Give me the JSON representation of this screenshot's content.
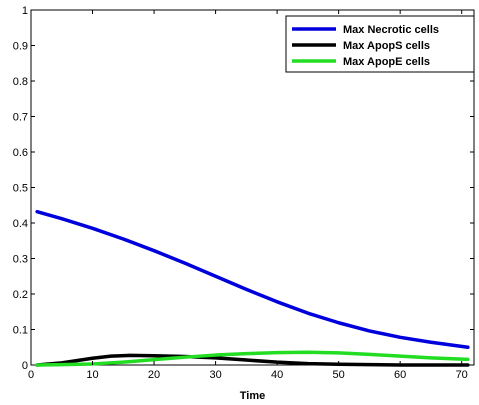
{
  "chart_data": {
    "type": "line",
    "title": "",
    "xlabel": "Time",
    "ylabel": "",
    "xlim": [
      0,
      72
    ],
    "ylim": [
      0,
      1
    ],
    "xticks": [
      0,
      10,
      20,
      30,
      40,
      50,
      60,
      70
    ],
    "yticks": [
      0,
      0.1,
      0.2,
      0.3,
      0.4,
      0.5,
      0.6,
      0.7,
      0.8,
      0.9,
      1
    ],
    "grid": false,
    "legend_position": "top-right",
    "series": [
      {
        "name": "Max Necrotic cells",
        "color": "#0000dd",
        "x": [
          1,
          5,
          10,
          15,
          20,
          25,
          30,
          35,
          40,
          45,
          50,
          55,
          60,
          65,
          71
        ],
        "y": [
          0.432,
          0.412,
          0.385,
          0.355,
          0.322,
          0.287,
          0.25,
          0.213,
          0.178,
          0.146,
          0.119,
          0.096,
          0.078,
          0.064,
          0.05
        ]
      },
      {
        "name": "Max ApopS cells",
        "color": "#000000",
        "x": [
          1,
          5,
          10,
          13,
          16,
          20,
          25,
          30,
          35,
          40,
          45,
          50,
          55,
          60,
          71
        ],
        "y": [
          0,
          0.006,
          0.019,
          0.025,
          0.027,
          0.026,
          0.024,
          0.02,
          0.014,
          0.008,
          0.004,
          0.002,
          0.001,
          0,
          0
        ]
      },
      {
        "name": "Max ApopE cells",
        "color": "#22dd22",
        "x": [
          1,
          5,
          10,
          15,
          20,
          25,
          30,
          35,
          40,
          45,
          50,
          55,
          60,
          65,
          71
        ],
        "y": [
          0,
          0.001,
          0.003,
          0.008,
          0.015,
          0.022,
          0.028,
          0.032,
          0.035,
          0.036,
          0.034,
          0.03,
          0.025,
          0.02,
          0.016
        ]
      }
    ]
  }
}
